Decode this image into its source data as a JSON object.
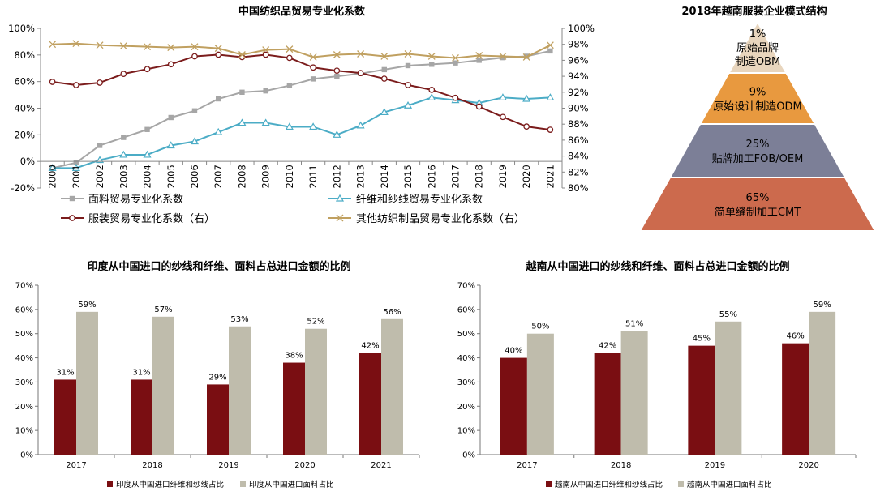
{
  "chart_data": [
    {
      "type": "line",
      "title": "中国纺织品贸易专业化系数",
      "x": [
        "2000",
        "2001",
        "2002",
        "2003",
        "2004",
        "2005",
        "2006",
        "2007",
        "2008",
        "2009",
        "2010",
        "2011",
        "2012",
        "2013",
        "2014",
        "2015",
        "2016",
        "2017",
        "2018",
        "2019",
        "2020",
        "2021"
      ],
      "ylim": [
        -20,
        100
      ],
      "yticks": [
        "-20%",
        "0%",
        "20%",
        "40%",
        "60%",
        "80%",
        "100%"
      ],
      "y2lim": [
        80,
        100
      ],
      "y2ticks": [
        "80%",
        "82%",
        "84%",
        "86%",
        "88%",
        "90%",
        "92%",
        "94%",
        "96%",
        "98%",
        "100%"
      ],
      "series": [
        {
          "name": "面料贸易专业化系数",
          "axis": "left",
          "color": "#a6a6a6",
          "marker": "square",
          "values": [
            -5,
            -1,
            12,
            18,
            24,
            33,
            38,
            47,
            52,
            53,
            57,
            62,
            64,
            66,
            69,
            72,
            73,
            74,
            76,
            78,
            79,
            83
          ]
        },
        {
          "name": "纤维和纱线贸易专业化系数",
          "axis": "left",
          "color": "#4bacc6",
          "marker": "triangle",
          "values": [
            -5,
            -5,
            1,
            5,
            5,
            12,
            15,
            22,
            29,
            29,
            26,
            26,
            20,
            27,
            37,
            42,
            48,
            46,
            44,
            48,
            47,
            48
          ]
        },
        {
          "name": "服装贸易专业化系数（右）",
          "axis": "right",
          "color": "#7b1c1c",
          "marker": "circle",
          "values": [
            93.3,
            92.9,
            93.2,
            94.3,
            94.9,
            95.5,
            96.5,
            96.7,
            96.4,
            96.7,
            96.3,
            95.1,
            94.7,
            94.4,
            93.7,
            92.9,
            92.3,
            91.3,
            90.2,
            88.9,
            87.7,
            87.3
          ]
        },
        {
          "name": "其他纺织制品贸易专业化系数（右）",
          "axis": "right",
          "color": "#c0a060",
          "marker": "x",
          "values": [
            98.0,
            98.1,
            97.9,
            97.8,
            97.7,
            97.6,
            97.7,
            97.5,
            96.7,
            97.3,
            97.4,
            96.4,
            96.7,
            96.8,
            96.5,
            96.8,
            96.5,
            96.3,
            96.6,
            96.5,
            96.4,
            97.9
          ]
        }
      ]
    },
    {
      "type": "pyramid",
      "title": "2018年越南服装企业模式结构",
      "levels": [
        {
          "pct": "1%",
          "label": "原始品牌制造OBM",
          "line2": "原始品牌",
          "line3": "制造OBM",
          "color": "#e8d5bd"
        },
        {
          "pct": "9%",
          "label": "原始设计制造ODM",
          "color": "#e8993f"
        },
        {
          "pct": "25%",
          "label": "贴牌加工FOB/OEM",
          "color": "#7c7f97"
        },
        {
          "pct": "65%",
          "label": "简单缝制加工CMT",
          "color": "#cc6a4d"
        }
      ]
    },
    {
      "type": "bar",
      "title": "印度从中国进口的纱线和纤维、面料占总进口金额的比例",
      "categories": [
        "2017",
        "2018",
        "2019",
        "2020",
        "2021"
      ],
      "ylim": [
        0,
        70
      ],
      "yticks": [
        "0%",
        "10%",
        "20%",
        "30%",
        "40%",
        "50%",
        "60%",
        "70%"
      ],
      "series": [
        {
          "name": "印度从中国进口纤维和纱线占比",
          "color": "#7a0e12",
          "values": [
            31,
            31,
            29,
            38,
            42
          ],
          "labels": [
            "31%",
            "31%",
            "29%",
            "38%",
            "42%"
          ]
        },
        {
          "name": "印度从中国进口面料占比",
          "color": "#bfbcac",
          "values": [
            59,
            57,
            53,
            52,
            56
          ],
          "labels": [
            "59%",
            "57%",
            "53%",
            "52%",
            "56%"
          ]
        }
      ]
    },
    {
      "type": "bar",
      "title": "越南从中国进口的纱线和纤维、面料占总进口金额的比例",
      "categories": [
        "2017",
        "2018",
        "2019",
        "2020"
      ],
      "ylim": [
        0,
        70
      ],
      "yticks": [
        "0%",
        "10%",
        "20%",
        "30%",
        "40%",
        "50%",
        "60%",
        "70%"
      ],
      "series": [
        {
          "name": "越南从中国进口纤维和纱线占比",
          "color": "#7a0e12",
          "values": [
            40,
            42,
            45,
            46
          ],
          "labels": [
            "40%",
            "42%",
            "45%",
            "46%"
          ]
        },
        {
          "name": "越南从中国进口面料占比",
          "color": "#bfbcac",
          "values": [
            50,
            51,
            55,
            59
          ],
          "labels": [
            "50%",
            "51%",
            "55%",
            "59%"
          ]
        }
      ]
    }
  ]
}
